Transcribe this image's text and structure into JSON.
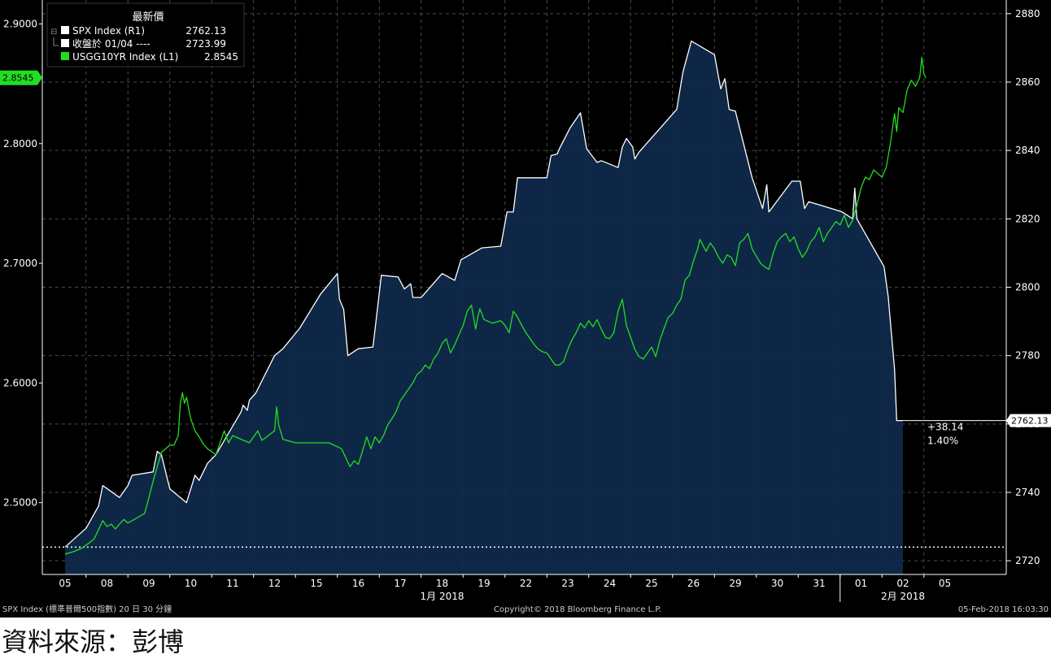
{
  "legend": {
    "header": "最新價",
    "items": [
      {
        "label": "SPX Index  (R1)",
        "value": "2762.13",
        "color": "#ffffff"
      },
      {
        "label": "收盤於 01/04 ----",
        "value": "2723.99",
        "color": "#ffffff"
      },
      {
        "label": "USGG10YR Index  (L1)",
        "value": "2.8545",
        "color": "#22dd22"
      }
    ]
  },
  "footer": {
    "left": "SPX Index (標準普爾500指數) 20 日 30 分鐘",
    "center": "Copyright© 2018 Bloomberg Finance L.P.",
    "right": "05-Feb-2018 16:03:30"
  },
  "source_caption": "資料來源：彭博",
  "chart_data": {
    "type": "area",
    "x_labels": [
      "05",
      "08",
      "09",
      "10",
      "11",
      "12",
      "15",
      "16",
      "17",
      "18",
      "19",
      "22",
      "23",
      "24",
      "25",
      "26",
      "29",
      "30",
      "31",
      "01",
      "02",
      "05"
    ],
    "month_labels": [
      {
        "label": "1月 2018",
        "index": 9
      },
      {
        "label": "2月 2018",
        "index": 20
      }
    ],
    "left_axis": {
      "ticks": [
        "2.5000",
        "2.6000",
        "2.7000",
        "2.8000",
        "2.9000"
      ],
      "range": [
        2.44,
        2.92
      ],
      "last_value_label": "2.8545"
    },
    "right_axis": {
      "ticks": [
        "2720",
        "2740",
        "2760",
        "2780",
        "2800",
        "2820",
        "2840",
        "2860",
        "2880"
      ],
      "range": [
        2716,
        2884
      ],
      "last_value_label": "2762.13"
    },
    "reference_line": {
      "label": "收盤於 01/04",
      "value": 2723.99
    },
    "change_annotation": {
      "change": "+38.14",
      "percent": "1.40%"
    },
    "series": [
      {
        "name": "SPX Index",
        "axis": "right",
        "color": "#ffffff",
        "fill": "#0f2a4d",
        "points": [
          [
            0.0,
            2724.0
          ],
          [
            0.5,
            2729.5
          ],
          [
            0.8,
            2736.0
          ],
          [
            0.9,
            2742.0
          ],
          [
            1.3,
            2738.5
          ],
          [
            1.5,
            2742.0
          ],
          [
            1.6,
            2745.0
          ],
          [
            2.1,
            2746.0
          ],
          [
            2.2,
            2752.0
          ],
          [
            2.3,
            2751.0
          ],
          [
            2.5,
            2741.0
          ],
          [
            2.9,
            2737.0
          ],
          [
            3.1,
            2745.0
          ],
          [
            3.2,
            2743.5
          ],
          [
            3.4,
            2748.5
          ],
          [
            3.6,
            2751.0
          ],
          [
            4.2,
            2763.5
          ],
          [
            4.25,
            2765.5
          ],
          [
            4.35,
            2764.0
          ],
          [
            4.4,
            2767.0
          ],
          [
            4.55,
            2769.0
          ],
          [
            5.0,
            2780.0
          ],
          [
            5.2,
            2782.0
          ],
          [
            5.6,
            2788.0
          ],
          [
            6.1,
            2798.0
          ],
          [
            6.5,
            2804.0
          ],
          [
            6.55,
            2796.5
          ],
          [
            6.65,
            2793.5
          ],
          [
            6.75,
            2780.0
          ],
          [
            7.0,
            2782.0
          ],
          [
            7.35,
            2782.5
          ],
          [
            7.55,
            2803.5
          ],
          [
            7.95,
            2803.0
          ],
          [
            8.1,
            2799.5
          ],
          [
            8.25,
            2801.0
          ],
          [
            8.3,
            2797.0
          ],
          [
            8.5,
            2797.0
          ],
          [
            9.0,
            2804.0
          ],
          [
            9.3,
            2802.0
          ],
          [
            9.45,
            2808.0
          ],
          [
            9.95,
            2811.5
          ],
          [
            10.4,
            2812.0
          ],
          [
            10.55,
            2822.0
          ],
          [
            10.7,
            2822.0
          ],
          [
            10.8,
            2832.0
          ],
          [
            11.5,
            2832.0
          ],
          [
            11.6,
            2838.5
          ],
          [
            11.75,
            2839.0
          ],
          [
            11.8,
            2840.5
          ],
          [
            12.05,
            2846.5
          ],
          [
            12.3,
            2851.0
          ],
          [
            12.45,
            2840.5
          ],
          [
            12.7,
            2836.5
          ],
          [
            12.8,
            2837.0
          ],
          [
            13.2,
            2835.0
          ],
          [
            13.3,
            2841.0
          ],
          [
            13.4,
            2843.5
          ],
          [
            13.55,
            2841.0
          ],
          [
            13.6,
            2837.5
          ],
          [
            13.7,
            2839.5
          ],
          [
            14.6,
            2852.0
          ],
          [
            14.75,
            2863.0
          ],
          [
            14.95,
            2872.0
          ],
          [
            15.5,
            2868.0
          ],
          [
            15.65,
            2858.0
          ],
          [
            15.75,
            2861.0
          ],
          [
            15.85,
            2852.0
          ],
          [
            16.0,
            2851.5
          ],
          [
            16.4,
            2832.0
          ],
          [
            16.65,
            2823.0
          ],
          [
            16.75,
            2830.0
          ],
          [
            16.8,
            2822.0
          ],
          [
            17.35,
            2831.0
          ],
          [
            17.55,
            2831.0
          ],
          [
            17.65,
            2823.0
          ],
          [
            17.75,
            2825.0
          ],
          [
            18.3,
            2823.0
          ],
          [
            18.55,
            2822.0
          ],
          [
            18.8,
            2820.0
          ],
          [
            18.85,
            2829.0
          ],
          [
            18.9,
            2820.0
          ],
          [
            19.55,
            2806.0
          ],
          [
            19.65,
            2797.0
          ],
          [
            19.7,
            2790.0
          ],
          [
            19.8,
            2776.0
          ],
          [
            19.85,
            2761.0
          ],
          [
            20.0,
            2761.0
          ]
        ]
      },
      {
        "name": "USGG10YR Index",
        "axis": "left",
        "color": "#22dd22",
        "points": [
          [
            0.0,
            2.457
          ],
          [
            0.2,
            2.459
          ],
          [
            0.4,
            2.462
          ],
          [
            0.6,
            2.467
          ],
          [
            0.7,
            2.47
          ],
          [
            0.9,
            2.485
          ],
          [
            1.0,
            2.48
          ],
          [
            1.1,
            2.482
          ],
          [
            1.2,
            2.478
          ],
          [
            1.4,
            2.486
          ],
          [
            1.5,
            2.483
          ],
          [
            1.7,
            2.487
          ],
          [
            1.9,
            2.491
          ],
          [
            2.0,
            2.504
          ],
          [
            2.1,
            2.518
          ],
          [
            2.3,
            2.542
          ],
          [
            2.5,
            2.548
          ],
          [
            2.6,
            2.548
          ],
          [
            2.7,
            2.556
          ],
          [
            2.75,
            2.582
          ],
          [
            2.8,
            2.592
          ],
          [
            2.85,
            2.583
          ],
          [
            2.9,
            2.588
          ],
          [
            3.0,
            2.57
          ],
          [
            3.1,
            2.56
          ],
          [
            3.2,
            2.555
          ],
          [
            3.3,
            2.549
          ],
          [
            3.4,
            2.545
          ],
          [
            3.6,
            2.54
          ],
          [
            3.8,
            2.56
          ],
          [
            3.9,
            2.55
          ],
          [
            4.0,
            2.556
          ],
          [
            4.2,
            2.553
          ],
          [
            4.4,
            2.55
          ],
          [
            4.6,
            2.56
          ],
          [
            4.7,
            2.552
          ],
          [
            4.85,
            2.556
          ],
          [
            5.0,
            2.56
          ],
          [
            5.05,
            2.58
          ],
          [
            5.1,
            2.565
          ],
          [
            5.2,
            2.553
          ],
          [
            5.5,
            2.55
          ],
          [
            6.0,
            2.55
          ],
          [
            6.3,
            2.55
          ],
          [
            6.6,
            2.545
          ],
          [
            6.8,
            2.53
          ],
          [
            6.9,
            2.535
          ],
          [
            7.0,
            2.532
          ],
          [
            7.1,
            2.543
          ],
          [
            7.2,
            2.555
          ],
          [
            7.3,
            2.545
          ],
          [
            7.4,
            2.555
          ],
          [
            7.5,
            2.55
          ],
          [
            7.6,
            2.556
          ],
          [
            7.7,
            2.565
          ],
          [
            7.8,
            2.57
          ],
          [
            7.9,
            2.576
          ],
          [
            8.0,
            2.585
          ],
          [
            8.1,
            2.59
          ],
          [
            8.3,
            2.6
          ],
          [
            8.4,
            2.607
          ],
          [
            8.5,
            2.61
          ],
          [
            8.6,
            2.615
          ],
          [
            8.7,
            2.612
          ],
          [
            8.8,
            2.62
          ],
          [
            8.9,
            2.625
          ],
          [
            9.0,
            2.633
          ],
          [
            9.1,
            2.637
          ],
          [
            9.2,
            2.625
          ],
          [
            9.3,
            2.632
          ],
          [
            9.4,
            2.64
          ],
          [
            9.5,
            2.648
          ],
          [
            9.6,
            2.66
          ],
          [
            9.7,
            2.665
          ],
          [
            9.8,
            2.645
          ],
          [
            9.85,
            2.655
          ],
          [
            9.9,
            2.662
          ],
          [
            10.0,
            2.653
          ],
          [
            10.2,
            2.65
          ],
          [
            10.4,
            2.652
          ],
          [
            10.5,
            2.648
          ],
          [
            10.6,
            2.642
          ],
          [
            10.7,
            2.66
          ],
          [
            10.8,
            2.655
          ],
          [
            10.9,
            2.648
          ],
          [
            11.0,
            2.642
          ],
          [
            11.1,
            2.637
          ],
          [
            11.2,
            2.632
          ],
          [
            11.3,
            2.628
          ],
          [
            11.4,
            2.626
          ],
          [
            11.5,
            2.625
          ],
          [
            11.6,
            2.62
          ],
          [
            11.7,
            2.615
          ],
          [
            11.8,
            2.615
          ],
          [
            11.9,
            2.618
          ],
          [
            12.0,
            2.628
          ],
          [
            12.1,
            2.636
          ],
          [
            12.2,
            2.642
          ],
          [
            12.3,
            2.65
          ],
          [
            12.4,
            2.646
          ],
          [
            12.5,
            2.652
          ],
          [
            12.6,
            2.647
          ],
          [
            12.7,
            2.653
          ],
          [
            12.8,
            2.645
          ],
          [
            12.9,
            2.638
          ],
          [
            13.0,
            2.637
          ],
          [
            13.1,
            2.642
          ],
          [
            13.2,
            2.66
          ],
          [
            13.3,
            2.67
          ],
          [
            13.4,
            2.648
          ],
          [
            13.5,
            2.638
          ],
          [
            13.6,
            2.628
          ],
          [
            13.7,
            2.622
          ],
          [
            13.8,
            2.62
          ],
          [
            13.9,
            2.625
          ],
          [
            14.0,
            2.63
          ],
          [
            14.1,
            2.622
          ],
          [
            14.2,
            2.636
          ],
          [
            14.3,
            2.646
          ],
          [
            14.4,
            2.655
          ],
          [
            14.5,
            2.658
          ],
          [
            14.6,
            2.665
          ],
          [
            14.7,
            2.67
          ],
          [
            14.8,
            2.686
          ],
          [
            14.9,
            2.69
          ],
          [
            15.0,
            2.702
          ],
          [
            15.1,
            2.712
          ],
          [
            15.15,
            2.72
          ],
          [
            15.3,
            2.71
          ],
          [
            15.4,
            2.717
          ],
          [
            15.5,
            2.712
          ],
          [
            15.6,
            2.705
          ],
          [
            15.7,
            2.7
          ],
          [
            15.8,
            2.707
          ],
          [
            15.9,
            2.705
          ],
          [
            16.0,
            2.698
          ],
          [
            16.1,
            2.717
          ],
          [
            16.2,
            2.72
          ],
          [
            16.3,
            2.725
          ],
          [
            16.4,
            2.712
          ],
          [
            16.5,
            2.706
          ],
          [
            16.6,
            2.7
          ],
          [
            16.7,
            2.697
          ],
          [
            16.8,
            2.695
          ],
          [
            16.9,
            2.708
          ],
          [
            17.0,
            2.718
          ],
          [
            17.1,
            2.722
          ],
          [
            17.2,
            2.725
          ],
          [
            17.3,
            2.718
          ],
          [
            17.4,
            2.722
          ],
          [
            17.5,
            2.712
          ],
          [
            17.6,
            2.705
          ],
          [
            17.7,
            2.71
          ],
          [
            17.8,
            2.718
          ],
          [
            17.9,
            2.722
          ],
          [
            18.0,
            2.73
          ],
          [
            18.1,
            2.718
          ],
          [
            18.2,
            2.725
          ],
          [
            18.3,
            2.73
          ],
          [
            18.4,
            2.735
          ],
          [
            18.5,
            2.732
          ],
          [
            18.6,
            2.74
          ],
          [
            18.7,
            2.73
          ],
          [
            18.8,
            2.736
          ],
          [
            18.9,
            2.748
          ],
          [
            19.0,
            2.763
          ],
          [
            19.1,
            2.772
          ],
          [
            19.2,
            2.77
          ],
          [
            19.3,
            2.778
          ],
          [
            19.4,
            2.775
          ],
          [
            19.5,
            2.772
          ],
          [
            19.6,
            2.78
          ],
          [
            19.7,
            2.8
          ],
          [
            19.8,
            2.825
          ],
          [
            19.85,
            2.81
          ],
          [
            19.9,
            2.83
          ],
          [
            20.0,
            2.826
          ],
          [
            20.1,
            2.845
          ],
          [
            20.2,
            2.853
          ],
          [
            20.3,
            2.848
          ],
          [
            20.4,
            2.855
          ],
          [
            20.45,
            2.872
          ],
          [
            20.5,
            2.858
          ],
          [
            20.55,
            2.855
          ]
        ]
      }
    ],
    "x_range": [
      -0.5,
      21.5
    ],
    "grid": true
  }
}
